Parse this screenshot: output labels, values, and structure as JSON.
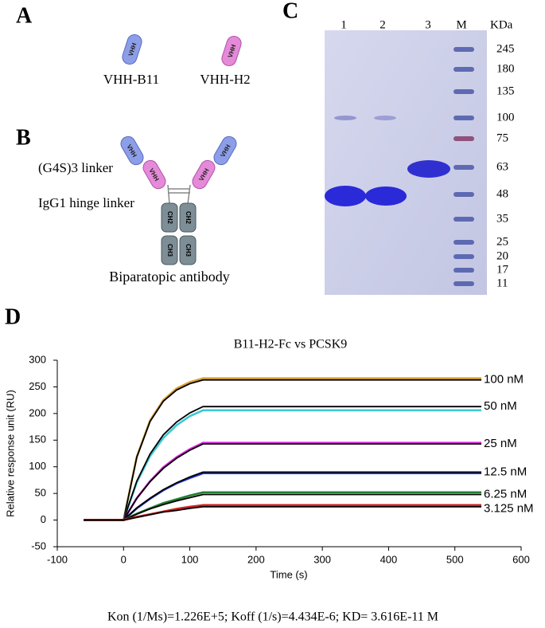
{
  "panel_a": {
    "label": "A",
    "capsule_text": "VHH",
    "names": [
      "VHH-B11",
      "VHH-H2"
    ]
  },
  "panel_b": {
    "label": "B",
    "linker": "(G4S)3 linker",
    "hinge": "IgG1 hinge linker",
    "caption": "Biparatopic antibody",
    "domains": [
      "CH2",
      "CH3"
    ]
  },
  "panel_c": {
    "label": "C",
    "lanes": [
      "1",
      "2",
      "3",
      "M"
    ],
    "unit": "KDa",
    "marker_sizes": [
      245,
      180,
      135,
      100,
      75,
      63,
      48,
      35,
      25,
      20,
      17,
      11
    ]
  },
  "panel_d_label": "D",
  "chart_data": {
    "type": "line",
    "title": "B11-H2-Fc vs PCSK9",
    "x_label": "Time (s)",
    "y_label": "Relative response unit (RU)",
    "footer": "Kon (1/Ms)=1.226E+5;  Koff (1/s)=4.434E-6;  KD= 3.616E-11 M",
    "x": [
      -60,
      0,
      20,
      40,
      60,
      80,
      100,
      120,
      540
    ],
    "xlim": [
      -100,
      600
    ],
    "xticks": [
      -100,
      0,
      100,
      200,
      300,
      400,
      500,
      600
    ],
    "ylim": [
      -50,
      300
    ],
    "yticks": [
      -50,
      0,
      50,
      100,
      150,
      200,
      250,
      300
    ],
    "fit_color": "#000000",
    "series": [
      {
        "name": "100 nM",
        "color": "#d9a030",
        "values": [
          0,
          0,
          119,
          187,
          225,
          247,
          259,
          266,
          266
        ],
        "fit": [
          0,
          0,
          118,
          185,
          223,
          244,
          256,
          263,
          263
        ]
      },
      {
        "name": "50 nM",
        "color": "#3cc8d8",
        "values": [
          0,
          0,
          71,
          120,
          154,
          178,
          195,
          206,
          206
        ],
        "fit": [
          0,
          0,
          73,
          124,
          160,
          184,
          201,
          213,
          213
        ]
      },
      {
        "name": "25 nM",
        "color": "#e020e0",
        "values": [
          0,
          0,
          41,
          73,
          99,
          118,
          133,
          145,
          145
        ],
        "fit": [
          0,
          0,
          41,
          72,
          97,
          116,
          131,
          143,
          143
        ]
      },
      {
        "name": "12.5 nM",
        "color": "#2030c8",
        "values": [
          0,
          0,
          22,
          40,
          56,
          69,
          79,
          88,
          88
        ],
        "fit": [
          0,
          0,
          23,
          41,
          57,
          70,
          81,
          90,
          90
        ]
      },
      {
        "name": "6.25 nM",
        "color": "#208030",
        "values": [
          0,
          0,
          12,
          22,
          32,
          39,
          46,
          52,
          52
        ],
        "fit": [
          0,
          0,
          11,
          21,
          29,
          36,
          42,
          48,
          48
        ]
      },
      {
        "name": "3.125 nM",
        "color": "#d02020",
        "values": [
          0,
          0,
          6,
          11,
          16,
          21,
          25,
          28,
          28
        ],
        "fit": [
          0,
          0,
          5,
          10,
          15,
          18,
          22,
          25,
          25
        ]
      }
    ]
  }
}
